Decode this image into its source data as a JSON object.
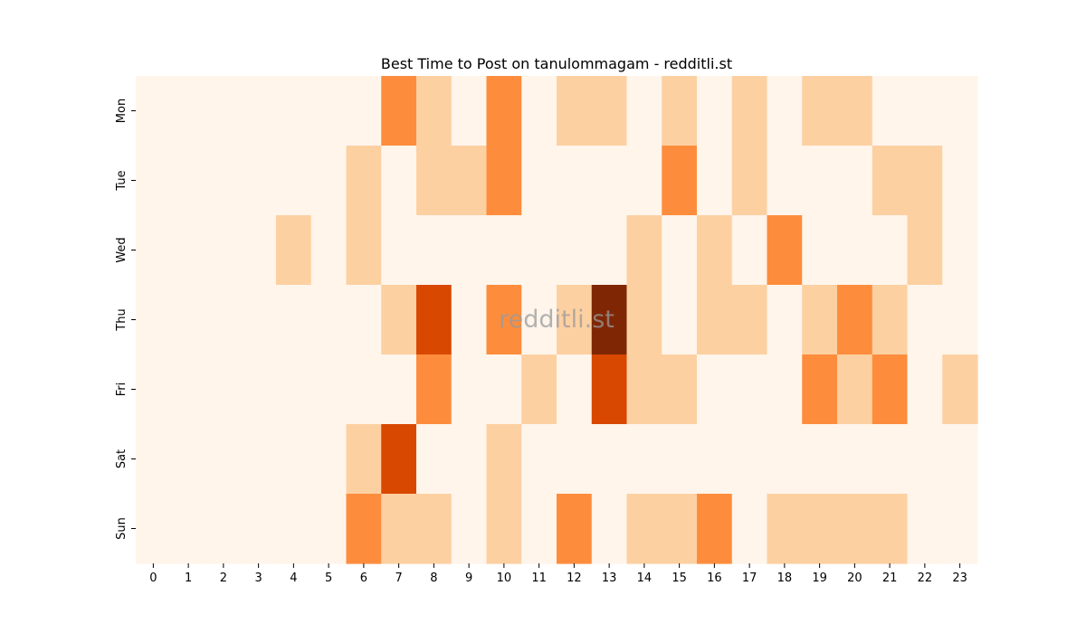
{
  "chart_data": {
    "type": "heatmap",
    "title": "Best Time to Post on tanulommagam - redditli.st",
    "watermark": "redditli.st",
    "x_categories": [
      "0",
      "1",
      "2",
      "3",
      "4",
      "5",
      "6",
      "7",
      "8",
      "9",
      "10",
      "11",
      "12",
      "13",
      "14",
      "15",
      "16",
      "17",
      "18",
      "19",
      "20",
      "21",
      "22",
      "23"
    ],
    "y_categories": [
      "Mon",
      "Tue",
      "Wed",
      "Thu",
      "Fri",
      "Sat",
      "Sun"
    ],
    "values": [
      [
        0,
        0,
        0,
        0,
        0,
        0,
        0,
        2,
        1,
        0,
        2,
        0,
        1,
        1,
        0,
        1,
        0,
        1,
        0,
        1,
        1,
        0,
        0,
        0
      ],
      [
        0,
        0,
        0,
        0,
        0,
        0,
        1,
        0,
        1,
        1,
        2,
        0,
        0,
        0,
        0,
        2,
        0,
        1,
        0,
        0,
        0,
        1,
        1,
        0
      ],
      [
        0,
        0,
        0,
        0,
        1,
        0,
        1,
        0,
        0,
        0,
        0,
        0,
        0,
        0,
        1,
        0,
        1,
        0,
        2,
        0,
        0,
        0,
        1,
        0
      ],
      [
        0,
        0,
        0,
        0,
        0,
        0,
        0,
        1,
        3,
        0,
        2,
        0,
        1,
        4,
        1,
        0,
        1,
        1,
        0,
        1,
        2,
        1,
        0,
        0
      ],
      [
        0,
        0,
        0,
        0,
        0,
        0,
        0,
        0,
        2,
        0,
        0,
        1,
        0,
        3,
        1,
        1,
        0,
        0,
        0,
        2,
        1,
        2,
        0,
        1
      ],
      [
        0,
        0,
        0,
        0,
        0,
        0,
        1,
        3,
        0,
        0,
        1,
        0,
        0,
        0,
        0,
        0,
        0,
        0,
        0,
        0,
        0,
        0,
        0,
        0
      ],
      [
        0,
        0,
        0,
        0,
        0,
        0,
        2,
        1,
        1,
        0,
        1,
        0,
        2,
        0,
        1,
        1,
        2,
        0,
        1,
        1,
        1,
        1,
        0,
        0
      ]
    ],
    "vmin": 0,
    "vmax": 4,
    "colormap": [
      "#fff5eb",
      "#fdd0a2",
      "#fd8d3c",
      "#d94801",
      "#7f2704"
    ],
    "xlabel": "",
    "ylabel": "",
    "legend": "none"
  }
}
